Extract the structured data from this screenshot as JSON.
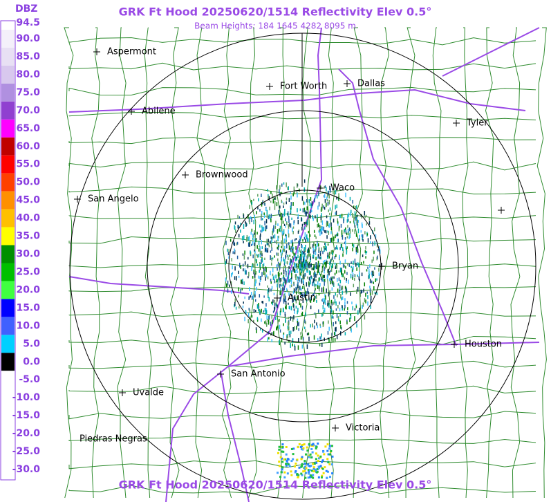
{
  "header": {
    "title": "GRK Ft Hood 20250620/1514 Reflectivity Elev 0.5°",
    "subtitle": "Beam Heights: 184 1645 4282 8095 m"
  },
  "footer": {
    "title": "GRK Ft Hood 20250620/1514 Reflectivity Elev 0.5°"
  },
  "legend": {
    "unit": "DBZ",
    "labels": [
      "94.5",
      "90.0",
      "85.0",
      "80.0",
      "75.0",
      "70.0",
      "65.0",
      "60.0",
      "55.0",
      "50.0",
      "45.0",
      "40.0",
      "35.0",
      "30.0",
      "25.0",
      "20.0",
      "15.0",
      "10.0",
      "5.0",
      "0.0",
      "-5.0",
      "-10.0",
      "-15.0",
      "-20.0",
      "-25.0",
      "-30.0"
    ],
    "colors": [
      "#ffffff",
      "#f4f0fa",
      "#e8e0f4",
      "#d8c8ee",
      "#b090e0",
      "#9040d0",
      "#ff00ff",
      "#c00000",
      "#ff0000",
      "#ff4000",
      "#ff9000",
      "#ffc000",
      "#ffff00",
      "#009000",
      "#00c000",
      "#40ff40",
      "#0000ff",
      "#4060ff",
      "#00d0ff",
      "#000000",
      "#ffffff",
      "#ffffff",
      "#ffffff",
      "#ffffff",
      "#ffffff",
      "#ffffff"
    ]
  },
  "cities": [
    "Aspermont",
    "Abilene",
    "Fort Worth",
    "Dallas",
    "Tyler",
    "Brownwood",
    "Waco",
    "San Angelo",
    "Bryan",
    "Austin",
    "Houston",
    "San Antonio",
    "Uvalde",
    "Victoria",
    "Piedras Negras"
  ]
}
